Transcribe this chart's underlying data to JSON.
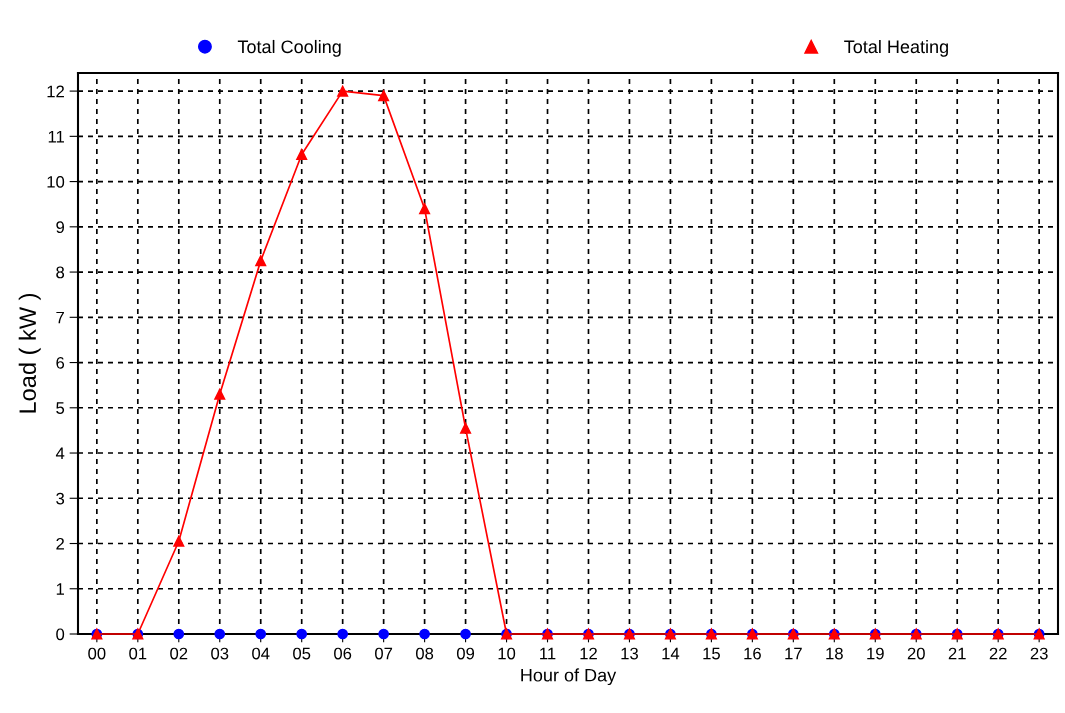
{
  "chart_data": {
    "type": "line",
    "xlabel": "Hour of Day",
    "ylabel": "Load ( kW )",
    "categories": [
      "00",
      "01",
      "02",
      "03",
      "04",
      "05",
      "06",
      "07",
      "08",
      "09",
      "10",
      "11",
      "12",
      "13",
      "14",
      "15",
      "16",
      "17",
      "18",
      "19",
      "20",
      "21",
      "22",
      "23"
    ],
    "series": [
      {
        "name": "Total Cooling",
        "type": "scatter",
        "color": "#0000ff",
        "marker": "circle",
        "values": [
          0,
          0,
          0,
          0,
          0,
          0,
          0,
          0,
          0,
          0,
          0,
          0,
          0,
          0,
          0,
          0,
          0,
          0,
          0,
          0,
          0,
          0,
          0,
          0
        ]
      },
      {
        "name": "Total Heating",
        "color": "#ff0000",
        "marker": "triangle",
        "line_style": "solid",
        "values": [
          0,
          0,
          2.05,
          5.3,
          8.25,
          10.6,
          12.0,
          11.9,
          9.4,
          4.55,
          0,
          0,
          0,
          0,
          0,
          0,
          0,
          0,
          0,
          0,
          0,
          0,
          0,
          0
        ]
      }
    ],
    "ylim": [
      0,
      12.4
    ],
    "yticks": [
      0,
      1,
      2,
      3,
      4,
      5,
      6,
      7,
      8,
      9,
      10,
      11,
      12
    ],
    "grid": true,
    "legend": "top"
  }
}
